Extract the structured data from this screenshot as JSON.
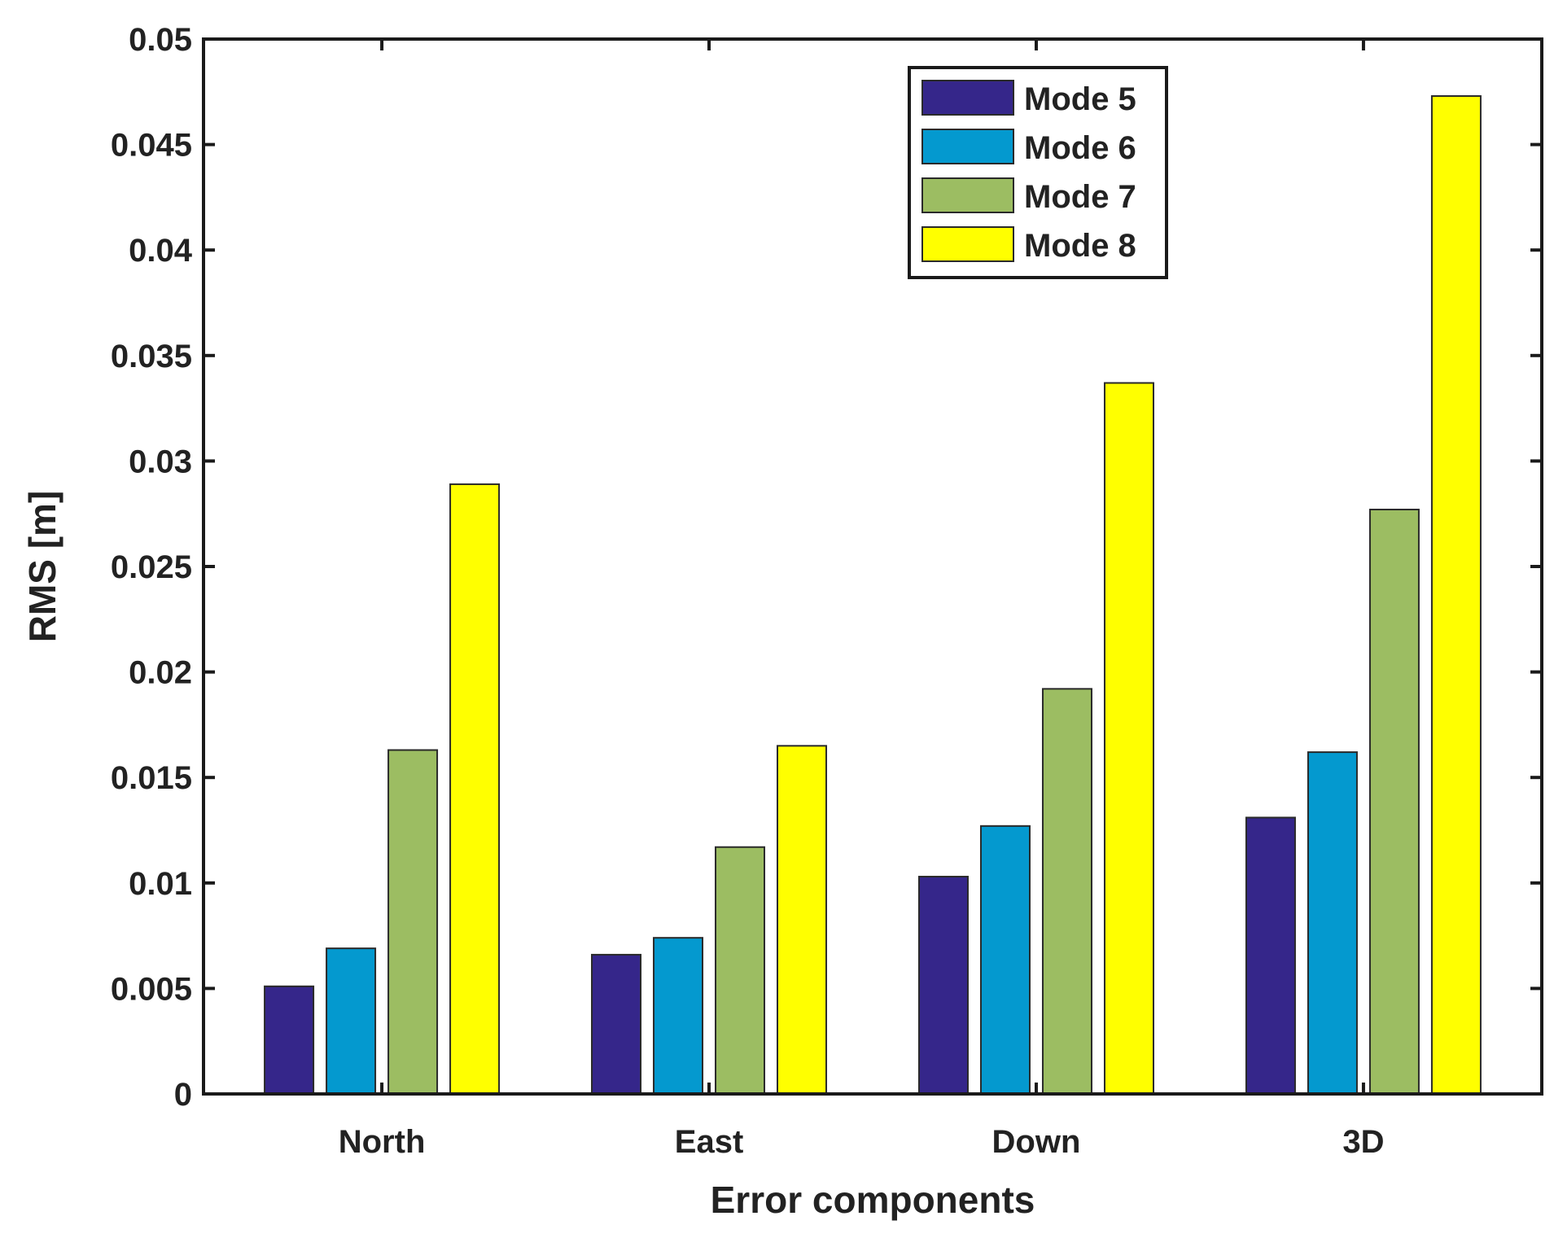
{
  "chart_data": {
    "type": "bar",
    "title": "",
    "xlabel": "Error components",
    "ylabel": "RMS [m]",
    "categories": [
      "North",
      "East",
      "Down",
      "3D"
    ],
    "ylim": [
      0,
      0.05
    ],
    "yticks": [
      0,
      0.005,
      0.01,
      0.015,
      0.02,
      0.025,
      0.03,
      0.035,
      0.04,
      0.045,
      0.05
    ],
    "ytick_labels": [
      "0",
      "0.005",
      "0.01",
      "0.015",
      "0.02",
      "0.025",
      "0.03",
      "0.035",
      "0.04",
      "0.045",
      "0.05"
    ],
    "grid": false,
    "legend_position": "top-right",
    "series": [
      {
        "name": "Mode 5",
        "color": "#35268a",
        "values": [
          0.0051,
          0.0066,
          0.0103,
          0.0131
        ]
      },
      {
        "name": "Mode 6",
        "color": "#0499cf",
        "values": [
          0.0069,
          0.0074,
          0.0127,
          0.0162
        ]
      },
      {
        "name": "Mode 7",
        "color": "#9cbd62",
        "values": [
          0.0163,
          0.0117,
          0.0192,
          0.0277
        ]
      },
      {
        "name": "Mode 8",
        "color": "#ffff00",
        "values": [
          0.0289,
          0.0165,
          0.0337,
          0.0473
        ]
      }
    ]
  }
}
